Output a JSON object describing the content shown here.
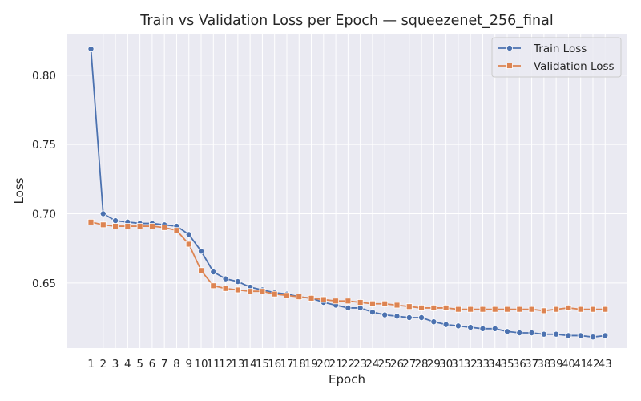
{
  "chart_data": {
    "type": "line",
    "title": "Train vs Validation Loss per Epoch — squeezenet_256_final",
    "xlabel": "Epoch",
    "ylabel": "Loss",
    "x": [
      1,
      2,
      3,
      4,
      5,
      6,
      7,
      8,
      9,
      10,
      11,
      12,
      13,
      14,
      15,
      16,
      17,
      18,
      19,
      20,
      21,
      22,
      23,
      24,
      25,
      26,
      27,
      28,
      29,
      30,
      31,
      32,
      33,
      34,
      35,
      36,
      37,
      38,
      39,
      40,
      41,
      42,
      43
    ],
    "y_ticks": [
      0.65,
      0.7,
      0.75,
      0.8
    ],
    "y_tick_labels": [
      "0.65",
      "0.70",
      "0.75",
      "0.80"
    ],
    "ylim": [
      0.603,
      0.83
    ],
    "grid": true,
    "legend_position": "top-right",
    "background_color": "#EAEAF2",
    "series": [
      {
        "name": "Train Loss",
        "color": "#4C72B0",
        "marker": "circle",
        "values": [
          0.819,
          0.7,
          0.695,
          0.694,
          0.693,
          0.693,
          0.692,
          0.691,
          0.685,
          0.673,
          0.658,
          0.653,
          0.651,
          0.647,
          0.645,
          0.643,
          0.642,
          0.64,
          0.639,
          0.636,
          0.634,
          0.632,
          0.632,
          0.629,
          0.627,
          0.626,
          0.625,
          0.625,
          0.622,
          0.62,
          0.619,
          0.618,
          0.617,
          0.617,
          0.615,
          0.614,
          0.614,
          0.613,
          0.613,
          0.612,
          0.612,
          0.611,
          0.612
        ]
      },
      {
        "name": "Validation Loss",
        "color": "#DD8452",
        "marker": "square",
        "values": [
          0.694,
          0.692,
          0.691,
          0.691,
          0.691,
          0.691,
          0.69,
          0.688,
          0.678,
          0.659,
          0.648,
          0.646,
          0.645,
          0.644,
          0.644,
          0.642,
          0.641,
          0.64,
          0.639,
          0.638,
          0.637,
          0.637,
          0.636,
          0.635,
          0.635,
          0.634,
          0.633,
          0.632,
          0.632,
          0.632,
          0.631,
          0.631,
          0.631,
          0.631,
          0.631,
          0.631,
          0.631,
          0.63,
          0.631,
          0.632,
          0.631,
          0.631,
          0.631
        ]
      }
    ]
  }
}
